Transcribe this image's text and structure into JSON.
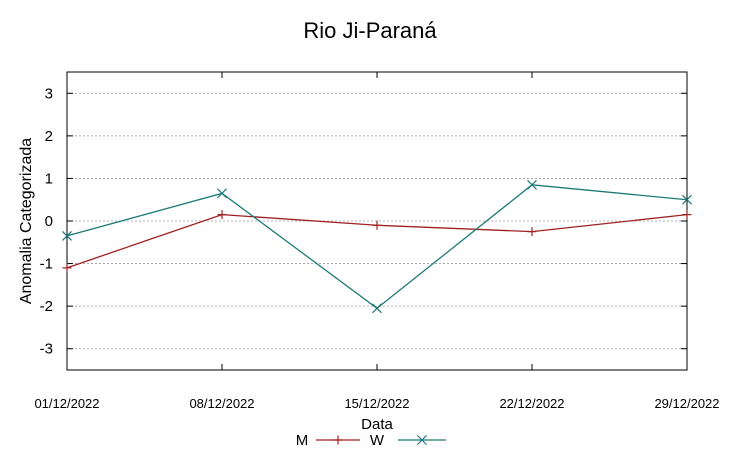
{
  "chart_data": {
    "type": "line",
    "title": "Rio Ji-Paraná",
    "xlabel": "Data",
    "ylabel": "Anomalia Categorizada",
    "categories": [
      "01/12/2022",
      "08/12/2022",
      "15/12/2022",
      "22/12/2022",
      "29/12/2022"
    ],
    "yticks": [
      "3",
      "2",
      "1",
      "0",
      "-1",
      "-2",
      "-3"
    ],
    "ylim": [
      -3.5,
      3.5
    ],
    "grid": "horizontal dotted",
    "legend_placement": "bottom-center",
    "series": [
      {
        "name": "M",
        "marker": "plus",
        "color": "#a02020",
        "values": [
          -1.1,
          0.15,
          -0.1,
          -0.25,
          0.15
        ]
      },
      {
        "name": "W",
        "marker": "cross",
        "color": "#1d7a78",
        "values": [
          -0.35,
          0.65,
          -2.05,
          0.85,
          0.5
        ]
      }
    ]
  }
}
